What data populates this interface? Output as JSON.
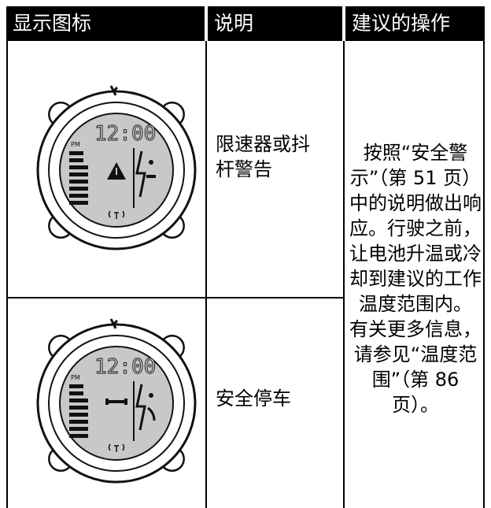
{
  "table": {
    "header": [
      "显示图标",
      "说明",
      "建议的操作"
    ],
    "rows": [
      {
        "icon": {
          "ampm": "PM",
          "time": "12:00"
        },
        "description": "限速器或抖杆警告"
      },
      {
        "icon": {
          "ampm": "PM",
          "time": "12:00"
        },
        "description": "安全停车"
      }
    ],
    "action": [
      "按照“安全警示”（第 51 页）中的说明做出响应。行驶之前，让电池升温或冷却到建议的工作温度范围内。",
      "有关更多信息，请参见“温度范围”（第 86 页）。"
    ]
  }
}
